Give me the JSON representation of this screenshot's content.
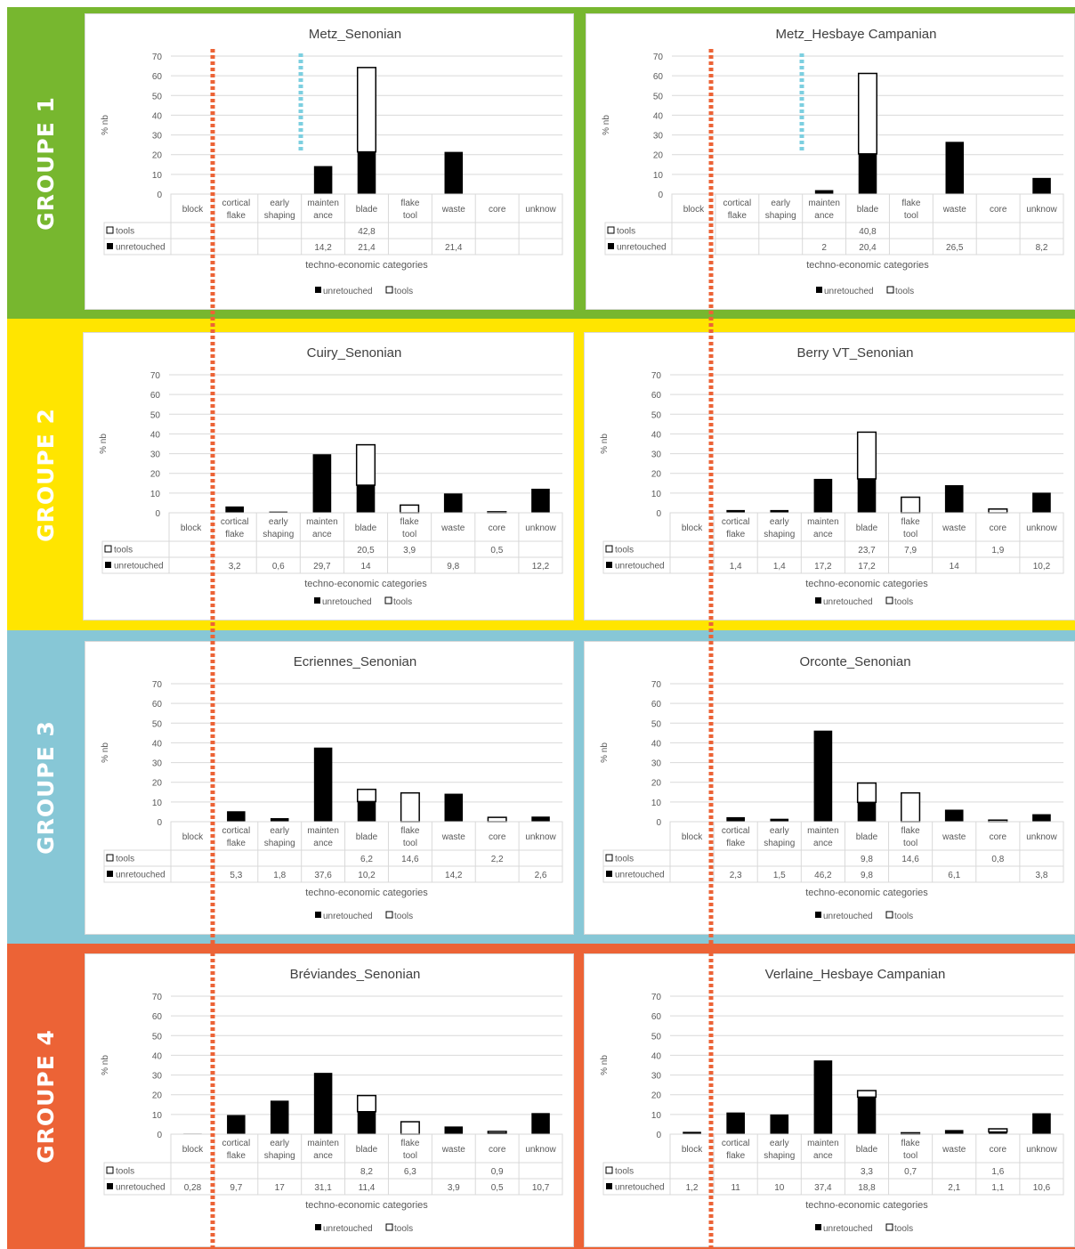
{
  "category_labels": [
    [
      "block"
    ],
    [
      "cortical",
      "flake"
    ],
    [
      "early",
      "shaping"
    ],
    [
      "mainten",
      "ance"
    ],
    [
      "blade"
    ],
    [
      "flake",
      "tool"
    ],
    [
      "waste"
    ],
    [
      "core"
    ],
    [
      "unknow"
    ]
  ],
  "x_axis_title": "techno-economic categories",
  "y_axis_title": "% nb",
  "y_ticks": [
    "0",
    "10",
    "20",
    "30",
    "40",
    "50",
    "60",
    "70"
  ],
  "series_names": {
    "tools": "tools",
    "unretouched": "unretouched"
  },
  "groups": [
    {
      "label": "GROUPE 1",
      "color": "#77b72f"
    },
    {
      "label": "GROUPE 2",
      "color": "#ffe500"
    },
    {
      "label": "GROUPE 3",
      "color": "#87c7d6"
    },
    {
      "label": "GROUPE 4",
      "color": "#ec6336"
    }
  ],
  "line_colors": {
    "orange": "#ec6336",
    "blue": "#7ccfe0"
  },
  "chart_data": [
    {
      "type": "bar",
      "stacked": true,
      "title": "Metz_Senonian",
      "ylim": [
        0,
        70
      ],
      "categories": [
        "block",
        "cortical flake",
        "early shaping",
        "maintenance",
        "blade",
        "flake tool",
        "waste",
        "core",
        "unknow"
      ],
      "series": [
        {
          "name": "unretouched",
          "values": [
            null,
            null,
            null,
            14.2,
            21.4,
            null,
            21.4,
            null,
            null
          ],
          "labels": [
            "",
            "",
            "",
            "14,2",
            "21,4",
            "",
            "21,4",
            "",
            ""
          ]
        },
        {
          "name": "tools",
          "values": [
            null,
            null,
            null,
            null,
            42.8,
            null,
            null,
            null,
            null
          ],
          "labels": [
            "",
            "",
            "",
            "",
            "42,8",
            "",
            "",
            "",
            ""
          ]
        }
      ]
    },
    {
      "type": "bar",
      "stacked": true,
      "title": "Metz_Hesbaye Campanian",
      "ylim": [
        0,
        70
      ],
      "categories": [
        "block",
        "cortical flake",
        "early shaping",
        "maintenance",
        "blade",
        "flake tool",
        "waste",
        "core",
        "unknow"
      ],
      "series": [
        {
          "name": "unretouched",
          "values": [
            null,
            null,
            null,
            2,
            20.4,
            null,
            26.5,
            null,
            8.2
          ],
          "labels": [
            "",
            "",
            "",
            "2",
            "20,4",
            "",
            "26,5",
            "",
            "8,2"
          ]
        },
        {
          "name": "tools",
          "values": [
            null,
            null,
            null,
            null,
            40.8,
            null,
            null,
            null,
            null
          ],
          "labels": [
            "",
            "",
            "",
            "",
            "40,8",
            "",
            "",
            "",
            ""
          ]
        }
      ]
    },
    {
      "type": "bar",
      "stacked": true,
      "title": "Cuiry_Senonian",
      "ylim": [
        0,
        70
      ],
      "categories": [
        "block",
        "cortical flake",
        "early shaping",
        "maintenance",
        "blade",
        "flake tool",
        "waste",
        "core",
        "unknow"
      ],
      "series": [
        {
          "name": "unretouched",
          "values": [
            null,
            3.2,
            0.6,
            29.7,
            14,
            null,
            9.8,
            null,
            12.2
          ],
          "labels": [
            "",
            "3,2",
            "0,6",
            "29,7",
            "14",
            "",
            "9,8",
            "",
            "12,2"
          ]
        },
        {
          "name": "tools",
          "values": [
            null,
            null,
            null,
            null,
            20.5,
            3.9,
            null,
            0.5,
            null
          ],
          "labels": [
            "",
            "",
            "",
            "",
            "20,5",
            "3,9",
            "",
            "0,5",
            ""
          ]
        }
      ]
    },
    {
      "type": "bar",
      "stacked": true,
      "title": "Berry VT_Senonian",
      "ylim": [
        0,
        70
      ],
      "categories": [
        "block",
        "cortical flake",
        "early shaping",
        "maintenance",
        "blade",
        "flake tool",
        "waste",
        "core",
        "unknow"
      ],
      "series": [
        {
          "name": "unretouched",
          "values": [
            null,
            1.4,
            1.4,
            17.2,
            17.2,
            null,
            14,
            null,
            10.2
          ],
          "labels": [
            "",
            "1,4",
            "1,4",
            "17,2",
            "17,2",
            "",
            "14",
            "",
            "10,2"
          ]
        },
        {
          "name": "tools",
          "values": [
            null,
            null,
            null,
            null,
            23.7,
            7.9,
            null,
            1.9,
            null
          ],
          "labels": [
            "",
            "",
            "",
            "",
            "23,7",
            "7,9",
            "",
            "1,9",
            ""
          ]
        }
      ]
    },
    {
      "type": "bar",
      "stacked": true,
      "title": "Ecriennes_Senonian",
      "ylim": [
        0,
        70
      ],
      "categories": [
        "block",
        "cortical flake",
        "early shaping",
        "maintenance",
        "blade",
        "flake tool",
        "waste",
        "core",
        "unknow"
      ],
      "series": [
        {
          "name": "unretouched",
          "values": [
            null,
            5.3,
            1.8,
            37.6,
            10.2,
            null,
            14.2,
            null,
            2.6
          ],
          "labels": [
            "",
            "5,3",
            "1,8",
            "37,6",
            "10,2",
            "",
            "14,2",
            "",
            "2,6"
          ]
        },
        {
          "name": "tools",
          "values": [
            null,
            null,
            null,
            null,
            6.2,
            14.6,
            null,
            2.2,
            null
          ],
          "labels": [
            "",
            "",
            "",
            "",
            "6,2",
            "14,6",
            "",
            "2,2",
            ""
          ]
        }
      ]
    },
    {
      "type": "bar",
      "stacked": true,
      "title": "Orconte_Senonian",
      "ylim": [
        0,
        70
      ],
      "categories": [
        "block",
        "cortical flake",
        "early shaping",
        "maintenance",
        "blade",
        "flake tool",
        "waste",
        "core",
        "unknow"
      ],
      "series": [
        {
          "name": "unretouched",
          "values": [
            null,
            2.3,
            1.5,
            46.2,
            9.8,
            null,
            6.1,
            null,
            3.8
          ],
          "labels": [
            "",
            "2,3",
            "1,5",
            "46,2",
            "9,8",
            "",
            "6,1",
            "",
            "3,8"
          ]
        },
        {
          "name": "tools",
          "values": [
            null,
            null,
            null,
            null,
            9.8,
            14.6,
            null,
            0.8,
            null
          ],
          "labels": [
            "",
            "",
            "",
            "",
            "9,8",
            "14,6",
            "",
            "0,8",
            ""
          ]
        }
      ]
    },
    {
      "type": "bar",
      "stacked": true,
      "title": "Bréviandes_Senonian",
      "ylim": [
        0,
        70
      ],
      "categories": [
        "block",
        "cortical flake",
        "early shaping",
        "maintenance",
        "blade",
        "flake tool",
        "waste",
        "core",
        "unknow"
      ],
      "series": [
        {
          "name": "unretouched",
          "values": [
            0.28,
            9.7,
            17,
            31.1,
            11.4,
            null,
            3.9,
            0.5,
            10.7
          ],
          "labels": [
            "0,28",
            "9,7",
            "17",
            "31,1",
            "11,4",
            "",
            "3,9",
            "0,5",
            "10,7"
          ]
        },
        {
          "name": "tools",
          "values": [
            null,
            null,
            null,
            null,
            8.2,
            6.3,
            null,
            0.9,
            null
          ],
          "labels": [
            "",
            "",
            "",
            "",
            "8,2",
            "6,3",
            "",
            "0,9",
            ""
          ]
        }
      ]
    },
    {
      "type": "bar",
      "stacked": true,
      "title": "Verlaine_Hesbaye Campanian",
      "ylim": [
        0,
        70
      ],
      "categories": [
        "block",
        "cortical flake",
        "early shaping",
        "maintenance",
        "blade",
        "flake tool",
        "waste",
        "core",
        "unknow"
      ],
      "series": [
        {
          "name": "unretouched",
          "values": [
            1.2,
            11,
            10,
            37.4,
            18.8,
            null,
            2.1,
            1.1,
            10.6
          ],
          "labels": [
            "1,2",
            "11",
            "10",
            "37,4",
            "18,8",
            "",
            "2,1",
            "1,1",
            "10,6"
          ]
        },
        {
          "name": "tools",
          "values": [
            null,
            null,
            null,
            null,
            3.3,
            0.7,
            null,
            1.6,
            null
          ],
          "labels": [
            "",
            "",
            "",
            "",
            "3,3",
            "0,7",
            "",
            "1,6",
            ""
          ]
        }
      ]
    }
  ]
}
